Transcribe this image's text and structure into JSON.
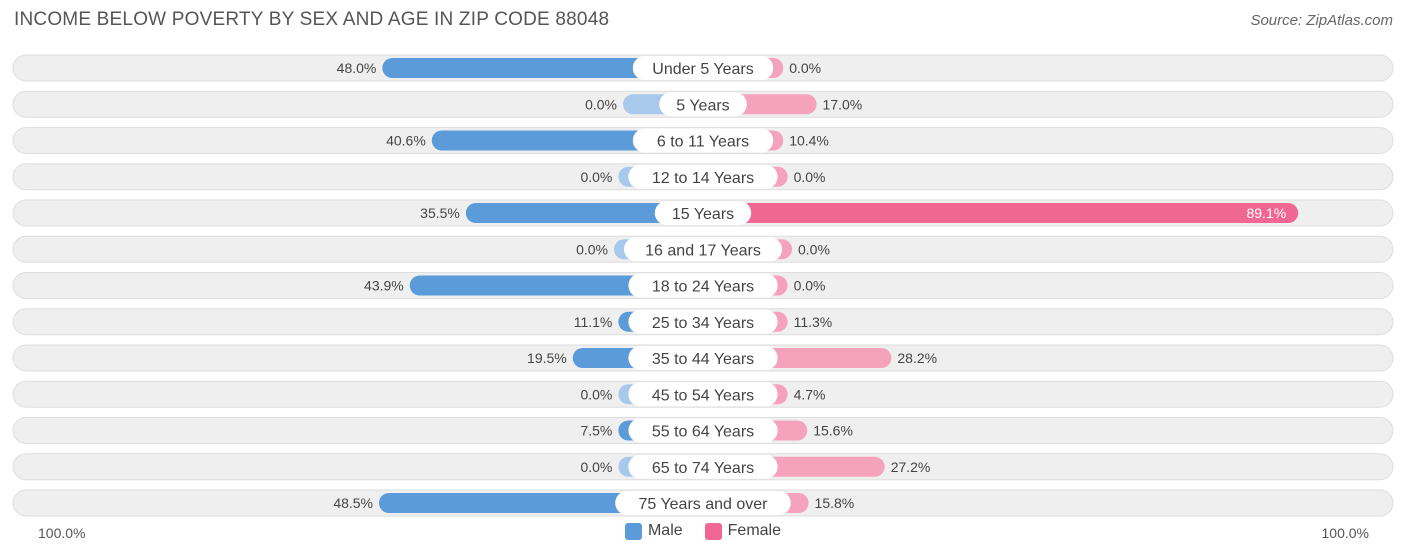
{
  "title": "INCOME BELOW POVERTY BY SEX AND AGE IN ZIP CODE 88048",
  "source": "Source: ZipAtlas.com",
  "colors": {
    "male_strong": "#5b9bd9",
    "male_light": "#a9c9ec",
    "female_strong": "#f06793",
    "female_light": "#f5a3bd",
    "row_bg": "#efefef",
    "row_border": "#dedede"
  },
  "chart_data": {
    "type": "bar",
    "orientation": "horizontal-diverging",
    "categories": [
      "Under 5 Years",
      "5 Years",
      "6 to 11 Years",
      "12 to 14 Years",
      "15 Years",
      "16 and 17 Years",
      "18 to 24 Years",
      "25 to 34 Years",
      "35 to 44 Years",
      "45 to 54 Years",
      "55 to 64 Years",
      "65 to 74 Years",
      "75 Years and over"
    ],
    "series": [
      {
        "name": "Male",
        "values": [
          48.0,
          0.0,
          40.6,
          0.0,
          35.5,
          0.0,
          43.9,
          11.1,
          19.5,
          0.0,
          7.5,
          0.0,
          48.5
        ],
        "labels": [
          "48.0%",
          "0.0%",
          "40.6%",
          "0.0%",
          "35.5%",
          "0.0%",
          "43.9%",
          "11.1%",
          "19.5%",
          "0.0%",
          "7.5%",
          "0.0%",
          "48.5%"
        ]
      },
      {
        "name": "Female",
        "values": [
          0.0,
          17.0,
          10.4,
          0.0,
          89.1,
          0.0,
          0.0,
          11.3,
          28.2,
          4.7,
          15.6,
          27.2,
          15.8
        ],
        "labels": [
          "0.0%",
          "17.0%",
          "10.4%",
          "0.0%",
          "89.1%",
          "0.0%",
          "0.0%",
          "11.3%",
          "28.2%",
          "4.7%",
          "15.6%",
          "27.2%",
          "15.8%"
        ]
      }
    ],
    "xlim": [
      0,
      100
    ],
    "axis_left_label": "100.0%",
    "axis_right_label": "100.0%",
    "legend_position": "bottom-center"
  }
}
